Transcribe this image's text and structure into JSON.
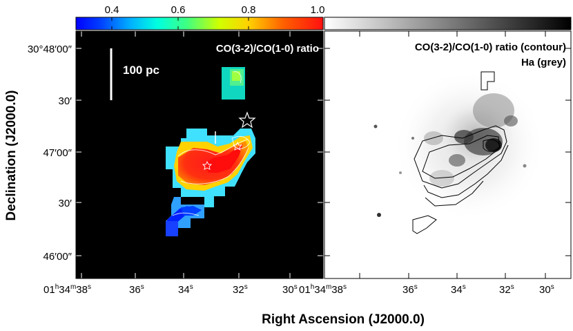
{
  "colorbar_left": {
    "ticks": [
      "0.4",
      "0.6",
      "0.8",
      "1.0"
    ],
    "colors": [
      "#0000ff",
      "#00c8ff",
      "#00ffb0",
      "#c8ff00",
      "#ffd000",
      "#ff2000"
    ]
  },
  "colorbar_right": {
    "colors": [
      "#ffffff",
      "#000000"
    ]
  },
  "left_panel": {
    "label": "CO(3-2)/CO(1-0) ratio",
    "scale_bar": "100 pc"
  },
  "right_panel": {
    "label_line1": "CO(3-2)/CO(1-0) ratio (contour)",
    "label_line2": "Ha (grey)"
  },
  "y_ticks": [
    {
      "main": "30°48′00″"
    },
    {
      "main": "30′"
    },
    {
      "main": "47′00″"
    },
    {
      "main": "30′"
    },
    {
      "main": "46′00″"
    }
  ],
  "x_ticks_left": [
    {
      "main": "01",
      "h": "h",
      "m": "34",
      "mu": "m",
      "s": "38",
      "su": "s"
    },
    {
      "main": "36",
      "su": "s"
    },
    {
      "main": "34",
      "su": "s"
    },
    {
      "main": "32",
      "su": "s"
    },
    {
      "main": "30",
      "su": "s"
    }
  ],
  "x_ticks_right": [
    {
      "main": "01",
      "h": "h",
      "m": "34",
      "mu": "m",
      "s": "38",
      "su": "s"
    },
    {
      "main": "36",
      "su": "s"
    },
    {
      "main": "34",
      "su": "s"
    },
    {
      "main": "32",
      "su": "s"
    },
    {
      "main": "30",
      "su": "s"
    }
  ],
  "x_axis_title": "Right Ascension (J2000.0)",
  "y_axis_title": "Declination (J2000.0)"
}
